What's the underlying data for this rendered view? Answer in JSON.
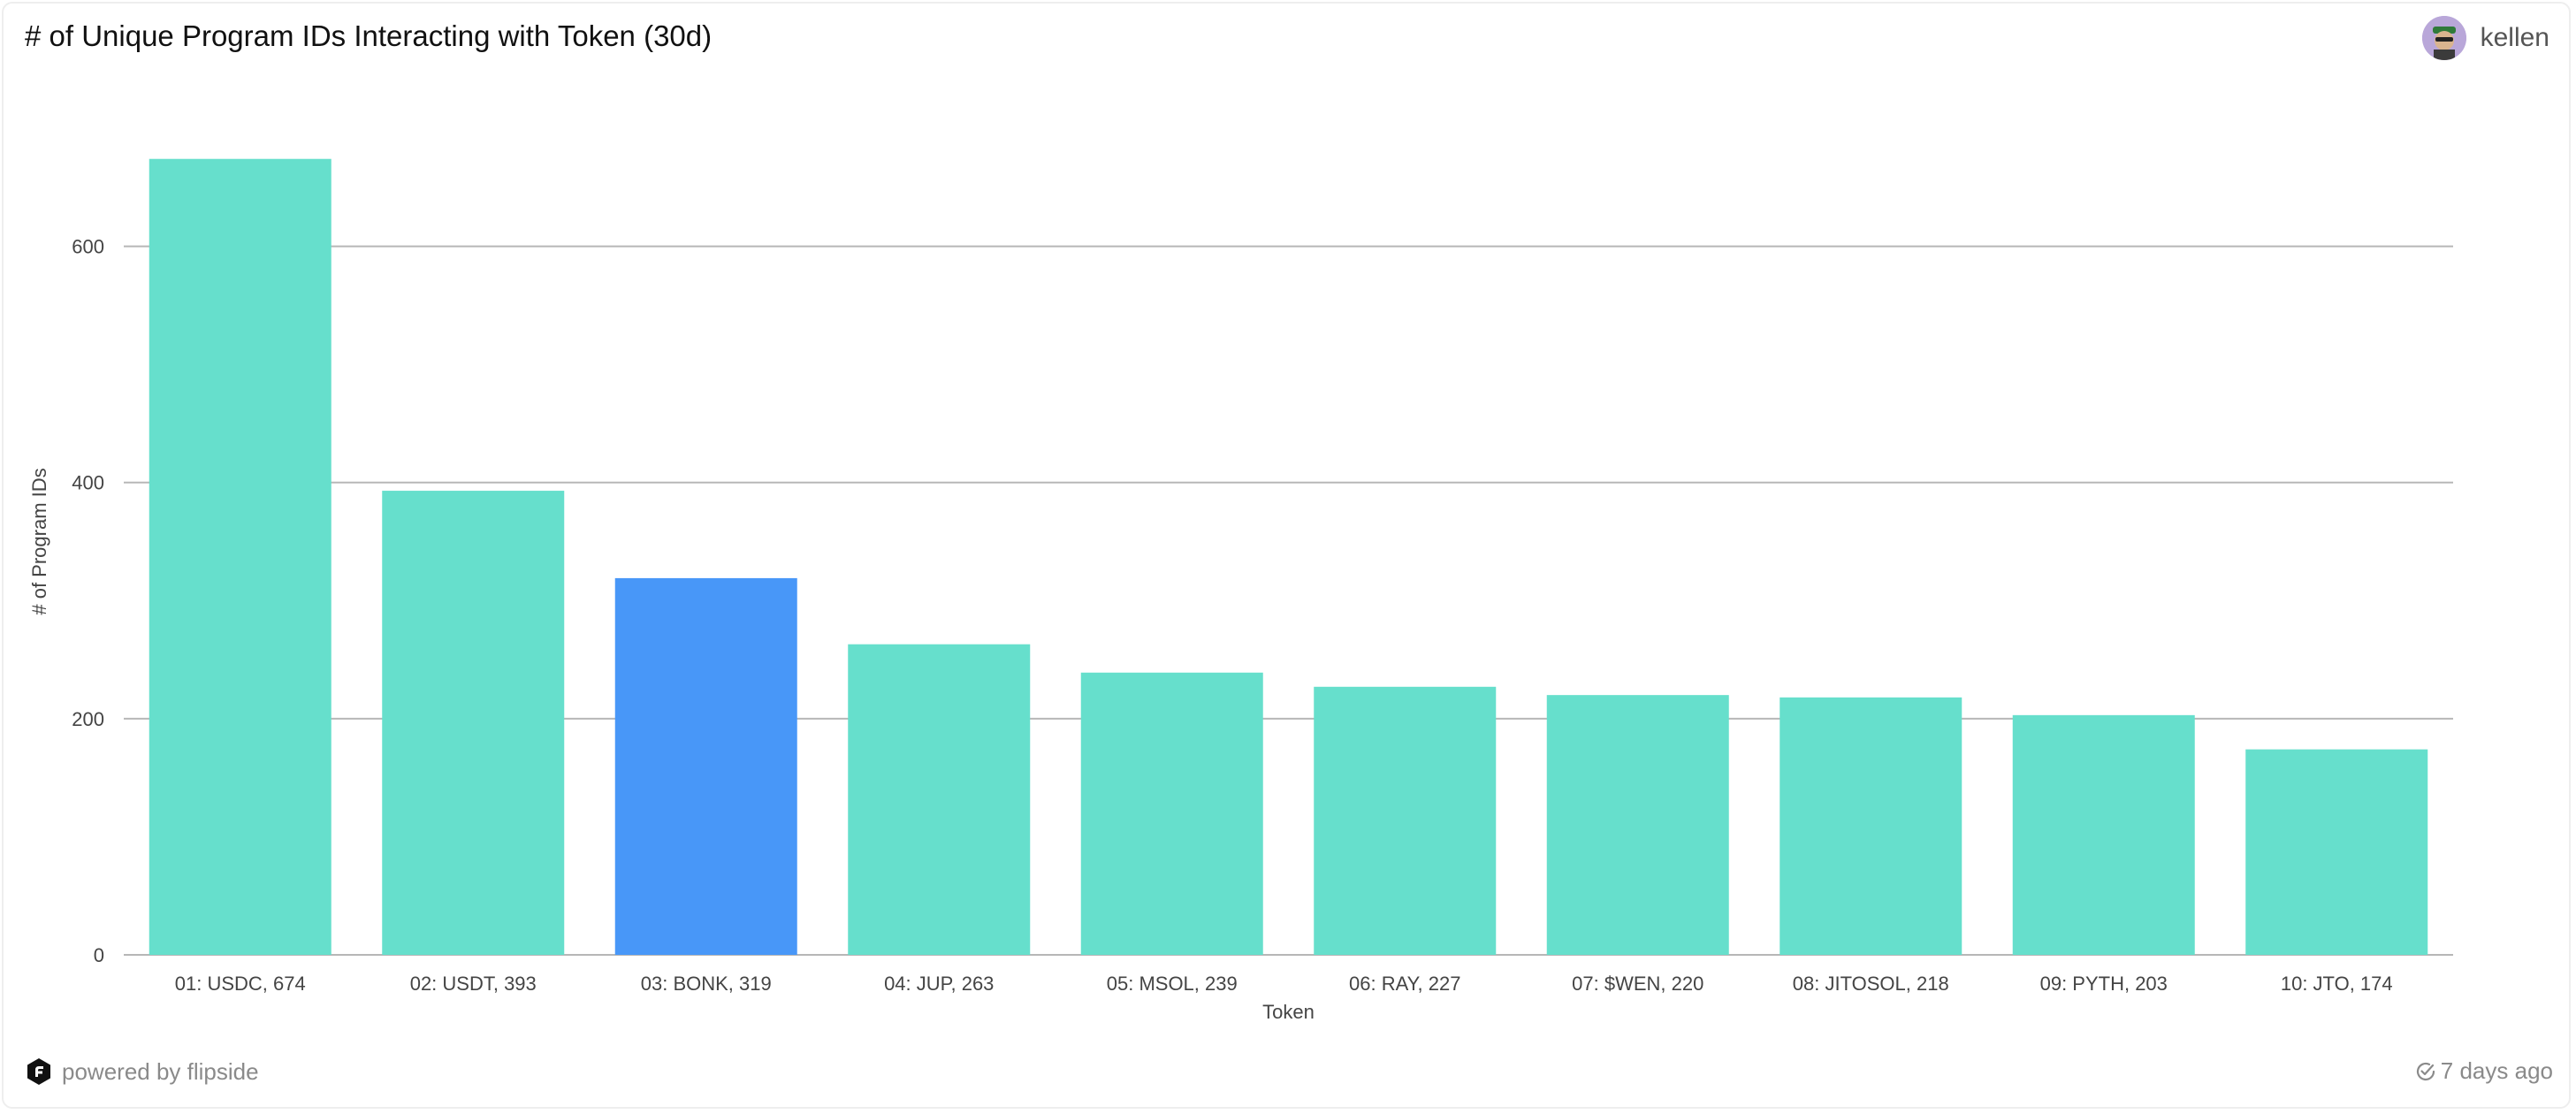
{
  "header": {
    "title": "# of Unique Program IDs Interacting with Token (30d)",
    "author": "kellen",
    "avatar_icon": "user-avatar"
  },
  "footer": {
    "powered_by": "powered by flipside",
    "logo_icon": "flipside-logo-icon",
    "updated": "7 days ago",
    "updated_icon": "check-circle-icon"
  },
  "colors": {
    "bar": "#66dfcc",
    "highlight": "#4897f8",
    "grid": "#b7b7b7",
    "axis_text": "#444444"
  },
  "chart_data": {
    "type": "bar",
    "title": "# of Unique Program IDs Interacting with Token (30d)",
    "xlabel": "Token",
    "ylabel": "# of Program IDs",
    "ylim": [
      0,
      700
    ],
    "yticks": [
      0,
      200,
      400,
      600
    ],
    "grid": true,
    "highlighted_category": "03: BONK, 319",
    "categories": [
      "01: USDC, 674",
      "02: USDT, 393",
      "03: BONK, 319",
      "04: JUP, 263",
      "05: MSOL, 239",
      "06: RAY, 227",
      "07: $WEN, 220",
      "08: JITOSOL, 218",
      "09: PYTH, 203",
      "10: JTO, 174"
    ],
    "values": [
      674,
      393,
      319,
      263,
      239,
      227,
      220,
      218,
      203,
      174
    ]
  }
}
